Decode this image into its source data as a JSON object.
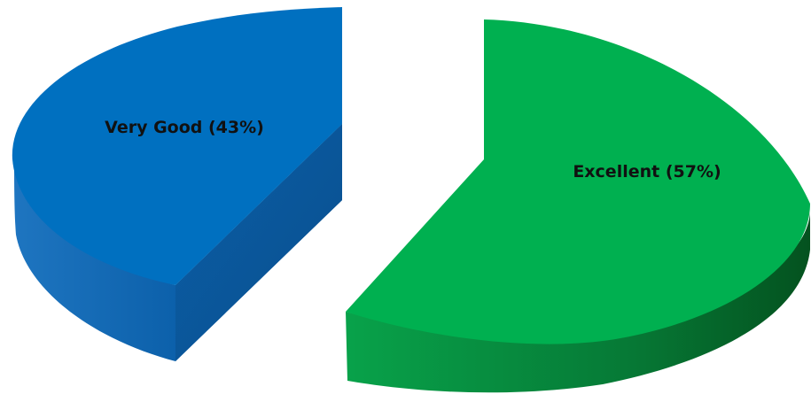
{
  "chart_data": {
    "type": "pie",
    "style": "3d-exploded",
    "legend": "none",
    "title": "",
    "categories": [
      "Very Good",
      "Excellent"
    ],
    "values": [
      43,
      57
    ],
    "labels": [
      "Very Good (43%)",
      "Excellent (57%)"
    ],
    "colors": {
      "very_good_top": "#0070C0",
      "very_good_side": "#0A5A9E",
      "excellent_top": "#00B050",
      "excellent_side": "#0E8A3C"
    }
  }
}
